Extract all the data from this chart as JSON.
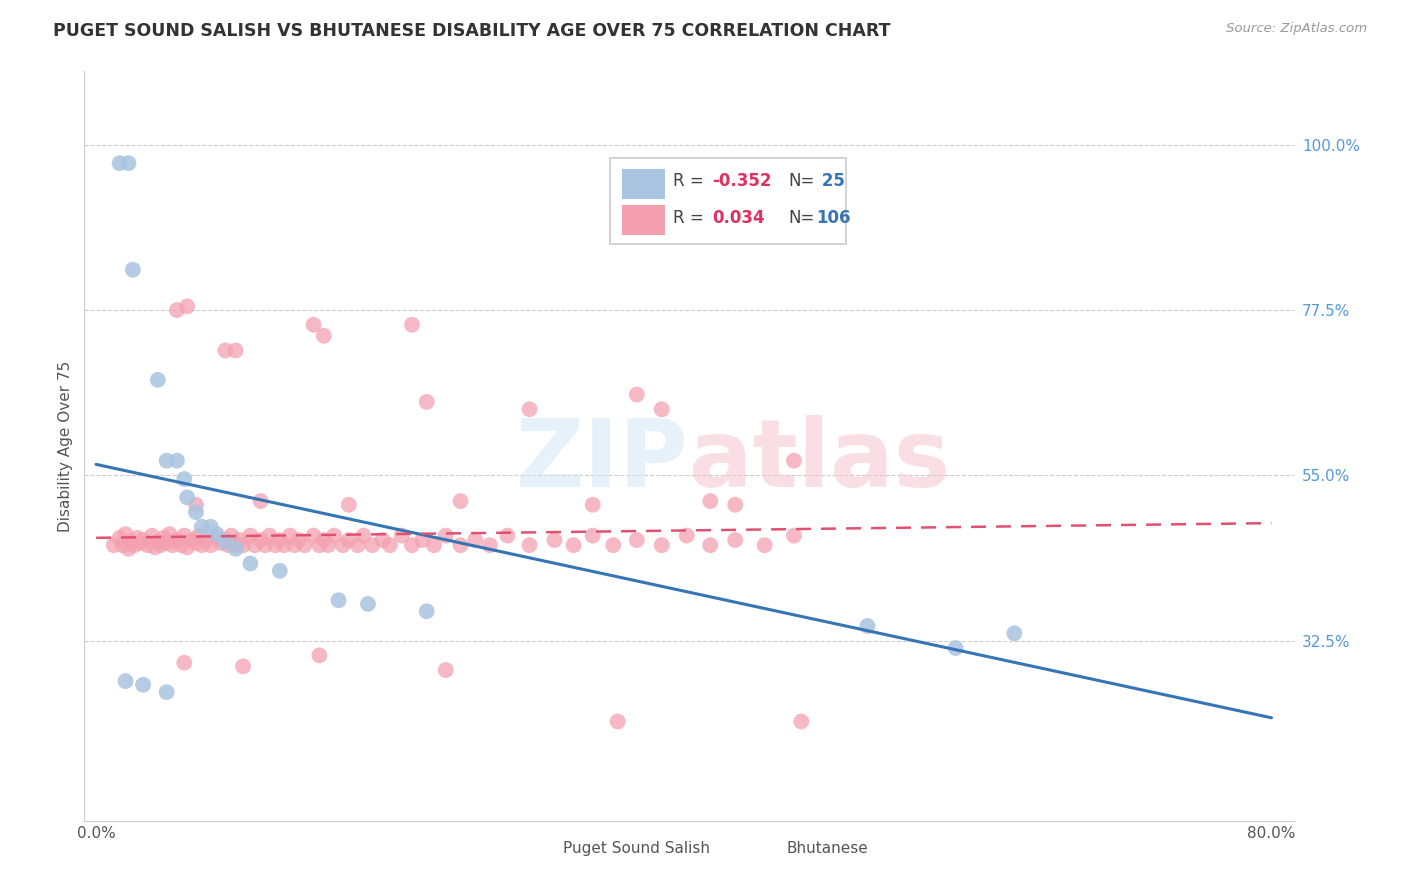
{
  "title": "PUGET SOUND SALISH VS BHUTANESE DISABILITY AGE OVER 75 CORRELATION CHART",
  "source": "Source: ZipAtlas.com",
  "ylabel": "Disability Age Over 75",
  "xlim": [
    0.0,
    0.8
  ],
  "ylim": [
    0.0,
    1.05
  ],
  "yticks": [
    0.325,
    0.55,
    0.775,
    1.0
  ],
  "ytick_labels": [
    "32.5%",
    "55.0%",
    "77.5%",
    "100.0%"
  ],
  "legend_r_blue": "-0.352",
  "legend_n_blue": "25",
  "legend_r_pink": "0.034",
  "legend_n_pink": "106",
  "blue_color": "#a8c4e0",
  "pink_color": "#f4a0b0",
  "blue_line_color": "#3575b5",
  "pink_line_color": "#e05070",
  "blue_line_x0": 0.0,
  "blue_line_y0": 0.565,
  "blue_line_x1": 0.8,
  "blue_line_y1": 0.22,
  "pink_line_x0": 0.0,
  "pink_line_y0": 0.465,
  "pink_line_x1": 0.8,
  "pink_line_y1": 0.485,
  "blue_scatter_x": [
    0.016,
    0.022,
    0.025,
    0.042,
    0.048,
    0.055,
    0.06,
    0.062,
    0.068,
    0.072,
    0.078,
    0.082,
    0.088,
    0.095,
    0.105,
    0.125,
    0.165,
    0.185,
    0.225,
    0.525,
    0.585,
    0.625,
    0.02,
    0.032,
    0.048
  ],
  "blue_scatter_y": [
    0.975,
    0.975,
    0.83,
    0.68,
    0.57,
    0.57,
    0.545,
    0.52,
    0.5,
    0.48,
    0.48,
    0.47,
    0.46,
    0.45,
    0.43,
    0.42,
    0.38,
    0.375,
    0.365,
    0.345,
    0.315,
    0.335,
    0.27,
    0.265,
    0.255
  ],
  "pink_scatter_x": [
    0.012,
    0.016,
    0.018,
    0.02,
    0.022,
    0.024,
    0.026,
    0.028,
    0.03,
    0.032,
    0.035,
    0.038,
    0.04,
    0.042,
    0.044,
    0.046,
    0.048,
    0.05,
    0.052,
    0.055,
    0.058,
    0.06,
    0.062,
    0.065,
    0.068,
    0.07,
    0.072,
    0.075,
    0.078,
    0.082,
    0.085,
    0.088,
    0.09,
    0.092,
    0.095,
    0.098,
    0.1,
    0.105,
    0.108,
    0.112,
    0.115,
    0.118,
    0.122,
    0.125,
    0.128,
    0.132,
    0.135,
    0.138,
    0.142,
    0.148,
    0.152,
    0.155,
    0.158,
    0.162,
    0.168,
    0.172,
    0.178,
    0.182,
    0.188,
    0.195,
    0.2,
    0.208,
    0.215,
    0.222,
    0.23,
    0.238,
    0.248,
    0.258,
    0.268,
    0.28,
    0.295,
    0.312,
    0.325,
    0.338,
    0.352,
    0.368,
    0.385,
    0.402,
    0.418,
    0.435,
    0.455,
    0.475,
    0.055,
    0.088,
    0.155,
    0.215,
    0.385,
    0.475,
    0.062,
    0.095,
    0.148,
    0.225,
    0.295,
    0.368,
    0.068,
    0.112,
    0.172,
    0.248,
    0.338,
    0.418,
    0.435,
    0.06,
    0.1,
    0.152,
    0.238,
    0.355,
    0.48
  ],
  "pink_scatter_y": [
    0.455,
    0.465,
    0.455,
    0.47,
    0.45,
    0.46,
    0.455,
    0.465,
    0.458,
    0.462,
    0.455,
    0.468,
    0.452,
    0.46,
    0.455,
    0.465,
    0.458,
    0.47,
    0.455,
    0.462,
    0.455,
    0.468,
    0.452,
    0.462,
    0.458,
    0.468,
    0.455,
    0.462,
    0.455,
    0.465,
    0.458,
    0.462,
    0.455,
    0.468,
    0.455,
    0.462,
    0.455,
    0.468,
    0.455,
    0.462,
    0.455,
    0.468,
    0.455,
    0.462,
    0.455,
    0.468,
    0.455,
    0.462,
    0.455,
    0.468,
    0.455,
    0.462,
    0.455,
    0.468,
    0.455,
    0.462,
    0.455,
    0.468,
    0.455,
    0.462,
    0.455,
    0.468,
    0.455,
    0.462,
    0.455,
    0.468,
    0.455,
    0.462,
    0.455,
    0.468,
    0.455,
    0.462,
    0.455,
    0.468,
    0.455,
    0.462,
    0.455,
    0.468,
    0.455,
    0.462,
    0.455,
    0.468,
    0.775,
    0.72,
    0.74,
    0.755,
    0.64,
    0.57,
    0.78,
    0.72,
    0.755,
    0.65,
    0.64,
    0.66,
    0.51,
    0.515,
    0.51,
    0.515,
    0.51,
    0.515,
    0.51,
    0.295,
    0.29,
    0.305,
    0.285,
    0.215,
    0.215
  ]
}
